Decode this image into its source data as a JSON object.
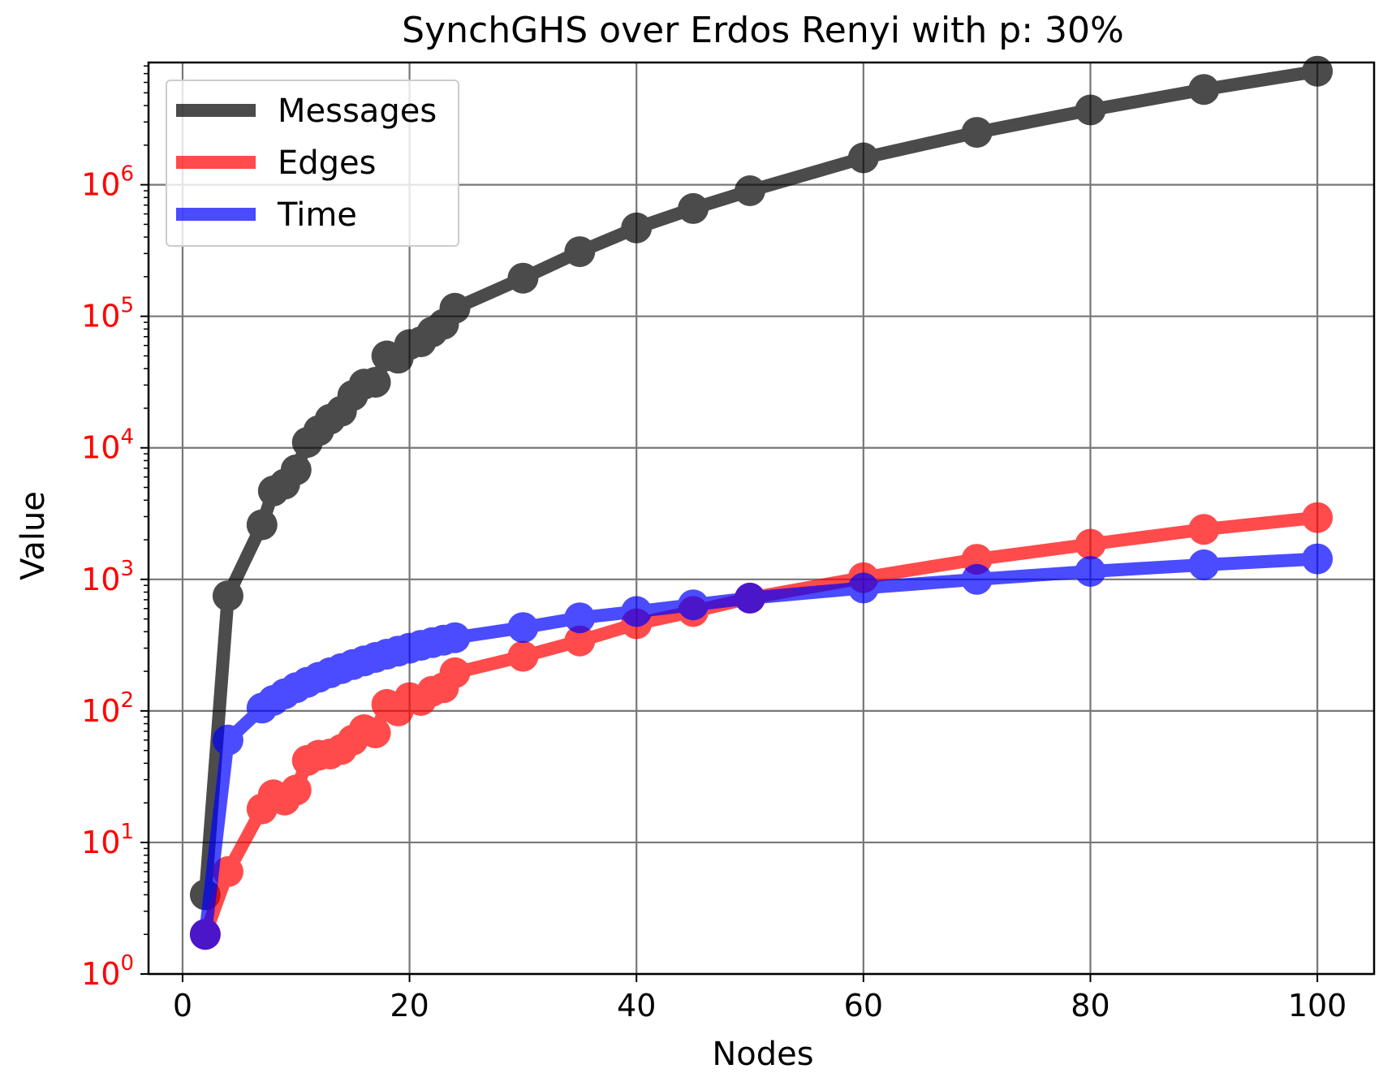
{
  "chart_data": {
    "type": "line",
    "title": "SynchGHS over Erdos Renyi with p: 30%",
    "xlabel": "Nodes",
    "ylabel": "Value",
    "xlim": [
      -3,
      105
    ],
    "ylim": [
      1,
      8500000
    ],
    "yscale": "log",
    "grid": true,
    "legend_position": "upper left",
    "ytick_color": "#ff0000",
    "xticks": [
      {
        "value": 0,
        "label": "0"
      },
      {
        "value": 20,
        "label": "20"
      },
      {
        "value": 40,
        "label": "40"
      },
      {
        "value": 60,
        "label": "60"
      },
      {
        "value": 80,
        "label": "80"
      },
      {
        "value": 100,
        "label": "100"
      }
    ],
    "yticks": [
      {
        "value": 1,
        "base": "10",
        "exp": "0"
      },
      {
        "value": 10,
        "base": "10",
        "exp": "1"
      },
      {
        "value": 100,
        "base": "10",
        "exp": "2"
      },
      {
        "value": 1000,
        "base": "10",
        "exp": "3"
      },
      {
        "value": 10000,
        "base": "10",
        "exp": "4"
      },
      {
        "value": 100000,
        "base": "10",
        "exp": "5"
      },
      {
        "value": 1000000,
        "base": "10",
        "exp": "6"
      }
    ],
    "x": [
      2,
      4,
      7,
      8,
      9,
      10,
      11,
      12,
      13,
      14,
      15,
      16,
      17,
      18,
      19,
      20,
      21,
      22,
      23,
      24,
      30,
      35,
      40,
      45,
      50,
      60,
      70,
      80,
      90,
      100
    ],
    "series": [
      {
        "name": "Messages",
        "color": "#000000",
        "values": [
          4,
          750,
          2600,
          4700,
          5300,
          6800,
          11000,
          13500,
          16500,
          19000,
          25000,
          30500,
          31500,
          50000,
          48000,
          61000,
          64000,
          76000,
          87000,
          115000,
          195000,
          310000,
          470000,
          660000,
          900000,
          1600000,
          2500000,
          3700000,
          5300000,
          7300000
        ]
      },
      {
        "name": "Edges",
        "color": "#ff0000",
        "values": [
          2,
          6,
          18,
          23,
          21,
          25,
          42,
          46,
          47,
          51,
          60,
          72,
          68,
          112,
          100,
          126,
          120,
          141,
          150,
          195,
          260,
          340,
          460,
          570,
          720,
          1030,
          1420,
          1850,
          2400,
          2950
        ]
      },
      {
        "name": "Time",
        "color": "#0000ff",
        "values": [
          2,
          60,
          105,
          120,
          135,
          150,
          165,
          180,
          195,
          210,
          225,
          240,
          255,
          270,
          285,
          300,
          315,
          330,
          345,
          360,
          430,
          510,
          570,
          640,
          720,
          860,
          1000,
          1150,
          1290,
          1430
        ]
      }
    ]
  }
}
